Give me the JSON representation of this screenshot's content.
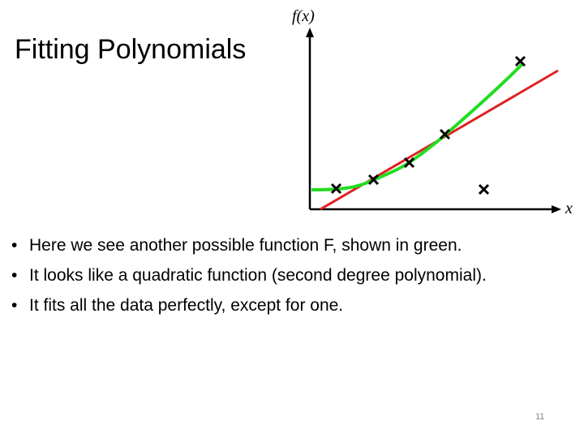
{
  "title": "Fitting Polynomials",
  "figure": {
    "y_label": "f(x)",
    "x_label": "x"
  },
  "bullets": [
    "Here we see another possible function F, shown in green.",
    "It looks like a quadratic function (second degree polynomial).",
    "It fits all the data perfectly, except for one."
  ],
  "page_number": "11"
}
